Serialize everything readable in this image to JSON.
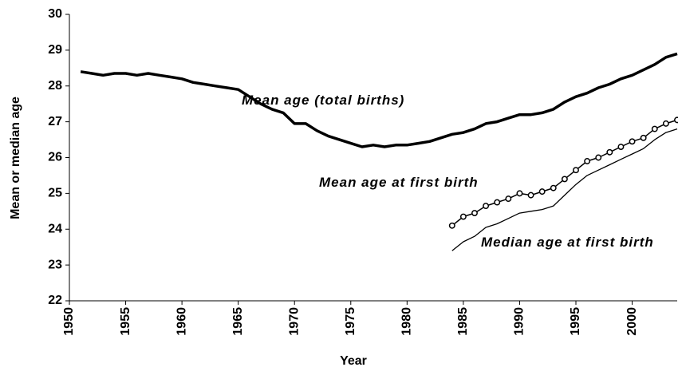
{
  "chart_data": {
    "type": "line",
    "xlabel": "Year",
    "ylabel": "Mean or median age",
    "xlim": [
      1950,
      2004
    ],
    "xticks": [
      1950,
      1955,
      1960,
      1965,
      1970,
      1975,
      1980,
      1985,
      1990,
      1995,
      2000
    ],
    "ylim": [
      22,
      30
    ],
    "yticks": [
      22,
      23,
      24,
      25,
      26,
      27,
      28,
      29,
      30
    ],
    "grid": false,
    "series": [
      {
        "name": "Mean age (total births)",
        "color": "#000000",
        "markers": false,
        "x": [
          1951,
          1952,
          1953,
          1954,
          1955,
          1956,
          1957,
          1958,
          1959,
          1960,
          1961,
          1962,
          1963,
          1964,
          1965,
          1966,
          1967,
          1968,
          1969,
          1970,
          1971,
          1972,
          1973,
          1974,
          1975,
          1976,
          1977,
          1978,
          1979,
          1980,
          1981,
          1982,
          1983,
          1984,
          1985,
          1986,
          1987,
          1988,
          1989,
          1990,
          1991,
          1992,
          1993,
          1994,
          1995,
          1996,
          1997,
          1998,
          1999,
          2000,
          2001,
          2002,
          2003,
          2004
        ],
        "values": [
          28.4,
          28.35,
          28.3,
          28.35,
          28.35,
          28.3,
          28.35,
          28.3,
          28.25,
          28.2,
          28.1,
          28.05,
          28.0,
          27.95,
          27.9,
          27.7,
          27.5,
          27.35,
          27.25,
          26.95,
          26.95,
          26.75,
          26.6,
          26.5,
          26.4,
          26.3,
          26.35,
          26.3,
          26.35,
          26.35,
          26.4,
          26.45,
          26.55,
          26.65,
          26.7,
          26.8,
          26.95,
          27.0,
          27.1,
          27.2,
          27.2,
          27.25,
          27.35,
          27.55,
          27.7,
          27.8,
          27.95,
          28.05,
          28.2,
          28.3,
          28.45,
          28.6,
          28.8,
          28.9
        ]
      },
      {
        "name": "Mean age at first birth",
        "color": "#000000",
        "markers": true,
        "x": [
          1984,
          1985,
          1986,
          1987,
          1988,
          1989,
          1990,
          1991,
          1992,
          1993,
          1994,
          1995,
          1996,
          1997,
          1998,
          1999,
          2000,
          2001,
          2002,
          2003,
          2004
        ],
        "values": [
          24.1,
          24.35,
          24.45,
          24.65,
          24.75,
          24.85,
          25.0,
          24.95,
          25.05,
          25.15,
          25.4,
          25.65,
          25.9,
          26.0,
          26.15,
          26.3,
          26.45,
          26.55,
          26.8,
          26.95,
          27.05
        ]
      },
      {
        "name": "Median age at first birth",
        "color": "#000000",
        "markers": false,
        "x": [
          1984,
          1985,
          1986,
          1987,
          1988,
          1989,
          1990,
          1991,
          1992,
          1993,
          1994,
          1995,
          1996,
          1997,
          1998,
          1999,
          2000,
          2001,
          2002,
          2003,
          2004
        ],
        "values": [
          23.4,
          23.65,
          23.8,
          24.05,
          24.15,
          24.3,
          24.45,
          24.5,
          24.55,
          24.65,
          24.95,
          25.25,
          25.5,
          25.65,
          25.8,
          25.95,
          26.1,
          26.25,
          26.5,
          26.7,
          26.8
        ]
      }
    ]
  }
}
